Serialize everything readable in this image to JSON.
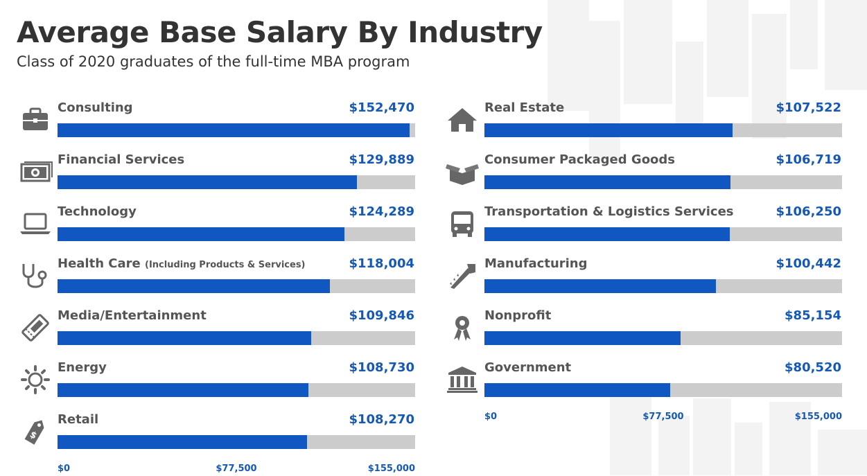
{
  "title": "Average Base Salary By Industry",
  "subtitle": "Class of 2020 graduates of the full-time MBA program",
  "colors": {
    "bar": "#1157c1",
    "track": "#cccccc",
    "value": "#1559b5",
    "text": "#555555"
  },
  "chart_data": {
    "type": "bar",
    "orientation": "horizontal",
    "title": "Average Base Salary By Industry",
    "subtitle": "Class of 2020 graduates of the full-time MBA program",
    "xlim": [
      0,
      155000
    ],
    "ticks": [
      "$0",
      "$77,500",
      "$155,000"
    ],
    "categories": [
      "Consulting",
      "Financial Services",
      "Technology",
      "Health Care",
      "Media/Entertainment",
      "Energy",
      "Retail",
      "Real Estate",
      "Consumer Packaged Goods",
      "Transportation & Logistics Services",
      "Manufacturing",
      "Nonprofit",
      "Government"
    ],
    "values": [
      152470,
      129889,
      124289,
      118004,
      109846,
      108730,
      108270,
      107522,
      106719,
      106250,
      100442,
      85154,
      80520
    ],
    "columns": [
      {
        "items": [
          {
            "label": "Consulting",
            "note": "",
            "value": 152470,
            "display": "$152,470",
            "icon": "briefcase-icon"
          },
          {
            "label": "Financial Services",
            "note": "",
            "value": 129889,
            "display": "$129,889",
            "icon": "money-icon"
          },
          {
            "label": "Technology",
            "note": "",
            "value": 124289,
            "display": "$124,289",
            "icon": "laptop-icon"
          },
          {
            "label": "Health Care",
            "note": "(Including Products & Services)",
            "value": 118004,
            "display": "$118,004",
            "icon": "stethoscope-icon"
          },
          {
            "label": "Media/Entertainment",
            "note": "",
            "value": 109846,
            "display": "$109,846",
            "icon": "ticket-icon"
          },
          {
            "label": "Energy",
            "note": "",
            "value": 108730,
            "display": "$108,730",
            "icon": "sun-icon"
          },
          {
            "label": "Retail",
            "note": "",
            "value": 108270,
            "display": "$108,270",
            "icon": "price-tag-icon"
          }
        ]
      },
      {
        "items": [
          {
            "label": "Real Estate",
            "note": "",
            "value": 107522,
            "display": "$107,522",
            "icon": "house-icon"
          },
          {
            "label": "Consumer Packaged Goods",
            "note": "",
            "value": 106719,
            "display": "$106,719",
            "icon": "box-icon"
          },
          {
            "label": "Transportation & Logistics Services",
            "note": "",
            "value": 106250,
            "display": "$106,250",
            "icon": "bus-icon"
          },
          {
            "label": "Manufacturing",
            "note": "",
            "value": 100442,
            "display": "$100,442",
            "icon": "saw-icon"
          },
          {
            "label": "Nonprofit",
            "note": "",
            "value": 85154,
            "display": "$85,154",
            "icon": "award-ribbon-icon"
          },
          {
            "label": "Government",
            "note": "",
            "value": 80520,
            "display": "$80,520",
            "icon": "government-building-icon"
          }
        ]
      }
    ]
  }
}
